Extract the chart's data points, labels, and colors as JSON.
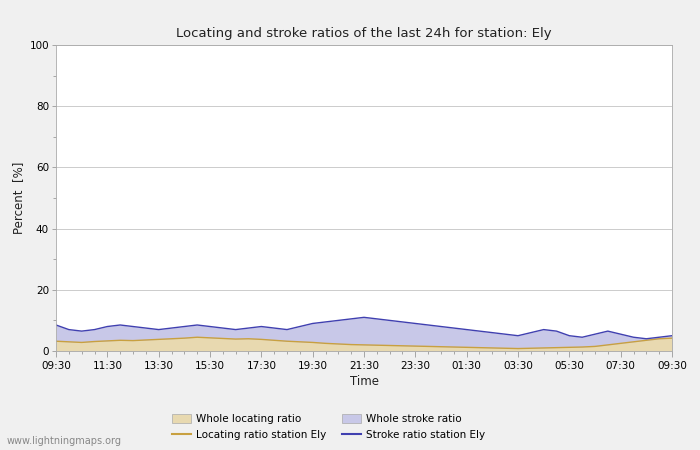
{
  "title": "Locating and stroke ratios of the last 24h for station: Ely",
  "xlabel": "Time",
  "ylabel": "Percent  [%]",
  "ylim": [
    0,
    100
  ],
  "yticks": [
    0,
    20,
    40,
    60,
    80,
    100
  ],
  "ytick_minor": [
    10,
    30,
    50,
    70,
    90
  ],
  "xtick_labels": [
    "09:30",
    "11:30",
    "13:30",
    "15:30",
    "17:30",
    "19:30",
    "21:30",
    "23:30",
    "01:30",
    "03:30",
    "05:30",
    "07:30",
    "09:30"
  ],
  "background_color": "#f0f0f0",
  "plot_bg_color": "#ffffff",
  "grid_color": "#cccccc",
  "watermark": "www.lightningmaps.org",
  "whole_locating_color": "#e8d9b0",
  "whole_stroke_color": "#c8c8e8",
  "locating_line_color": "#c8a040",
  "stroke_line_color": "#4040b0",
  "whole_locating_data": [
    3.2,
    3.0,
    2.8,
    3.1,
    3.3,
    3.5,
    3.4,
    3.6,
    3.8,
    4.0,
    4.2,
    4.5,
    4.3,
    4.1,
    3.9,
    4.0,
    3.8,
    3.5,
    3.2,
    3.0,
    2.8,
    2.5,
    2.3,
    2.1,
    2.0,
    1.9,
    1.8,
    1.7,
    1.6,
    1.5,
    1.4,
    1.3,
    1.2,
    1.1,
    1.0,
    0.9,
    0.8,
    0.9,
    1.0,
    1.1,
    1.2,
    1.3,
    1.5,
    2.0,
    2.5,
    3.0,
    3.5,
    4.0,
    4.2
  ],
  "whole_stroke_data": [
    8.5,
    7.0,
    6.5,
    7.0,
    8.0,
    8.5,
    8.0,
    7.5,
    7.0,
    7.5,
    8.0,
    8.5,
    8.0,
    7.5,
    7.0,
    7.5,
    8.0,
    7.5,
    7.0,
    8.0,
    9.0,
    9.5,
    10.0,
    10.5,
    11.0,
    10.5,
    10.0,
    9.5,
    9.0,
    8.5,
    8.0,
    7.5,
    7.0,
    6.5,
    6.0,
    5.5,
    5.0,
    6.0,
    7.0,
    6.5,
    5.0,
    4.5,
    5.5,
    6.5,
    5.5,
    4.5,
    4.0,
    4.5,
    5.0
  ],
  "locating_line_data": [
    3.2,
    3.0,
    2.8,
    3.1,
    3.3,
    3.5,
    3.4,
    3.6,
    3.8,
    4.0,
    4.2,
    4.5,
    4.3,
    4.1,
    3.9,
    4.0,
    3.8,
    3.5,
    3.2,
    3.0,
    2.8,
    2.5,
    2.3,
    2.1,
    2.0,
    1.9,
    1.8,
    1.7,
    1.6,
    1.5,
    1.4,
    1.3,
    1.2,
    1.1,
    1.0,
    0.9,
    0.8,
    0.9,
    1.0,
    1.1,
    1.2,
    1.3,
    1.5,
    2.0,
    2.5,
    3.0,
    3.5,
    4.0,
    4.2
  ],
  "stroke_line_data": [
    8.5,
    7.0,
    6.5,
    7.0,
    8.0,
    8.5,
    8.0,
    7.5,
    7.0,
    7.5,
    8.0,
    8.5,
    8.0,
    7.5,
    7.0,
    7.5,
    8.0,
    7.5,
    7.0,
    8.0,
    9.0,
    9.5,
    10.0,
    10.5,
    11.0,
    10.5,
    10.0,
    9.5,
    9.0,
    8.5,
    8.0,
    7.5,
    7.0,
    6.5,
    6.0,
    5.5,
    5.0,
    6.0,
    7.0,
    6.5,
    5.0,
    4.5,
    5.5,
    6.5,
    5.5,
    4.5,
    4.0,
    4.5,
    5.0
  ]
}
